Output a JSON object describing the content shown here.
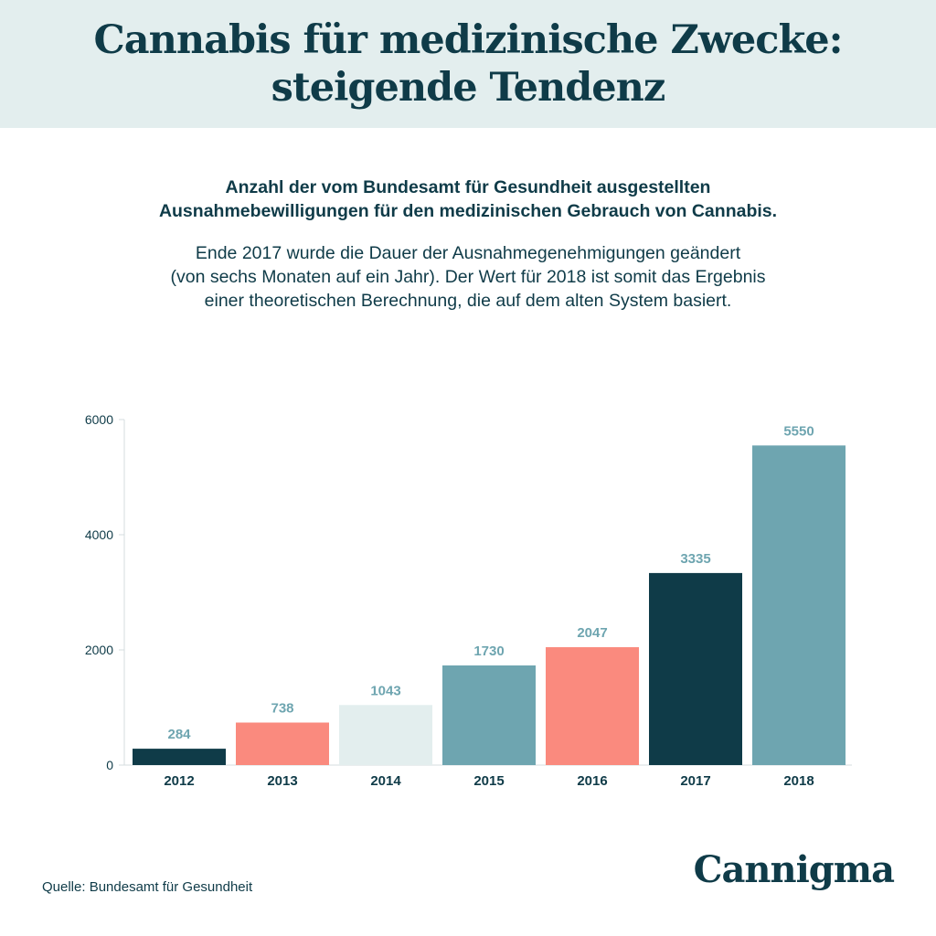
{
  "header": {
    "title_line1": "Cannabis für medizinische Zwecke:",
    "title_line2": "steigende Tendenz"
  },
  "subtitle": {
    "line1": "Anzahl der vom Bundesamt für Gesundheit ausgestellten",
    "line2": "Ausnahmebewilligungen für den medizinischen Gebrauch von Cannabis."
  },
  "note": {
    "line1": "Ende 2017 wurde die Dauer der Ausnahmegenehmigungen geändert",
    "line2": "(von sechs Monaten auf ein Jahr). Der Wert für 2018 ist somit das Ergebnis",
    "line3": "einer theoretischen Berechnung, die auf dem alten System basiert."
  },
  "chart_data": {
    "type": "bar",
    "categories": [
      "2012",
      "2013",
      "2014",
      "2015",
      "2016",
      "2017",
      "2018"
    ],
    "values": [
      284,
      738,
      1043,
      1730,
      2047,
      3335,
      5550
    ],
    "bar_colors": [
      "#0f3b48",
      "#fa8a7e",
      "#e3eeee",
      "#6ea5b0",
      "#fa8a7e",
      "#0f3b48",
      "#6ea5b0"
    ],
    "label_color": "#6ea5b0",
    "ylim": [
      0,
      6000
    ],
    "yticks": [
      0,
      2000,
      4000,
      6000
    ],
    "grid": false
  },
  "footer": {
    "source": "Quelle: Bundesamt für Gesundheit",
    "logo": "Cannigma"
  }
}
